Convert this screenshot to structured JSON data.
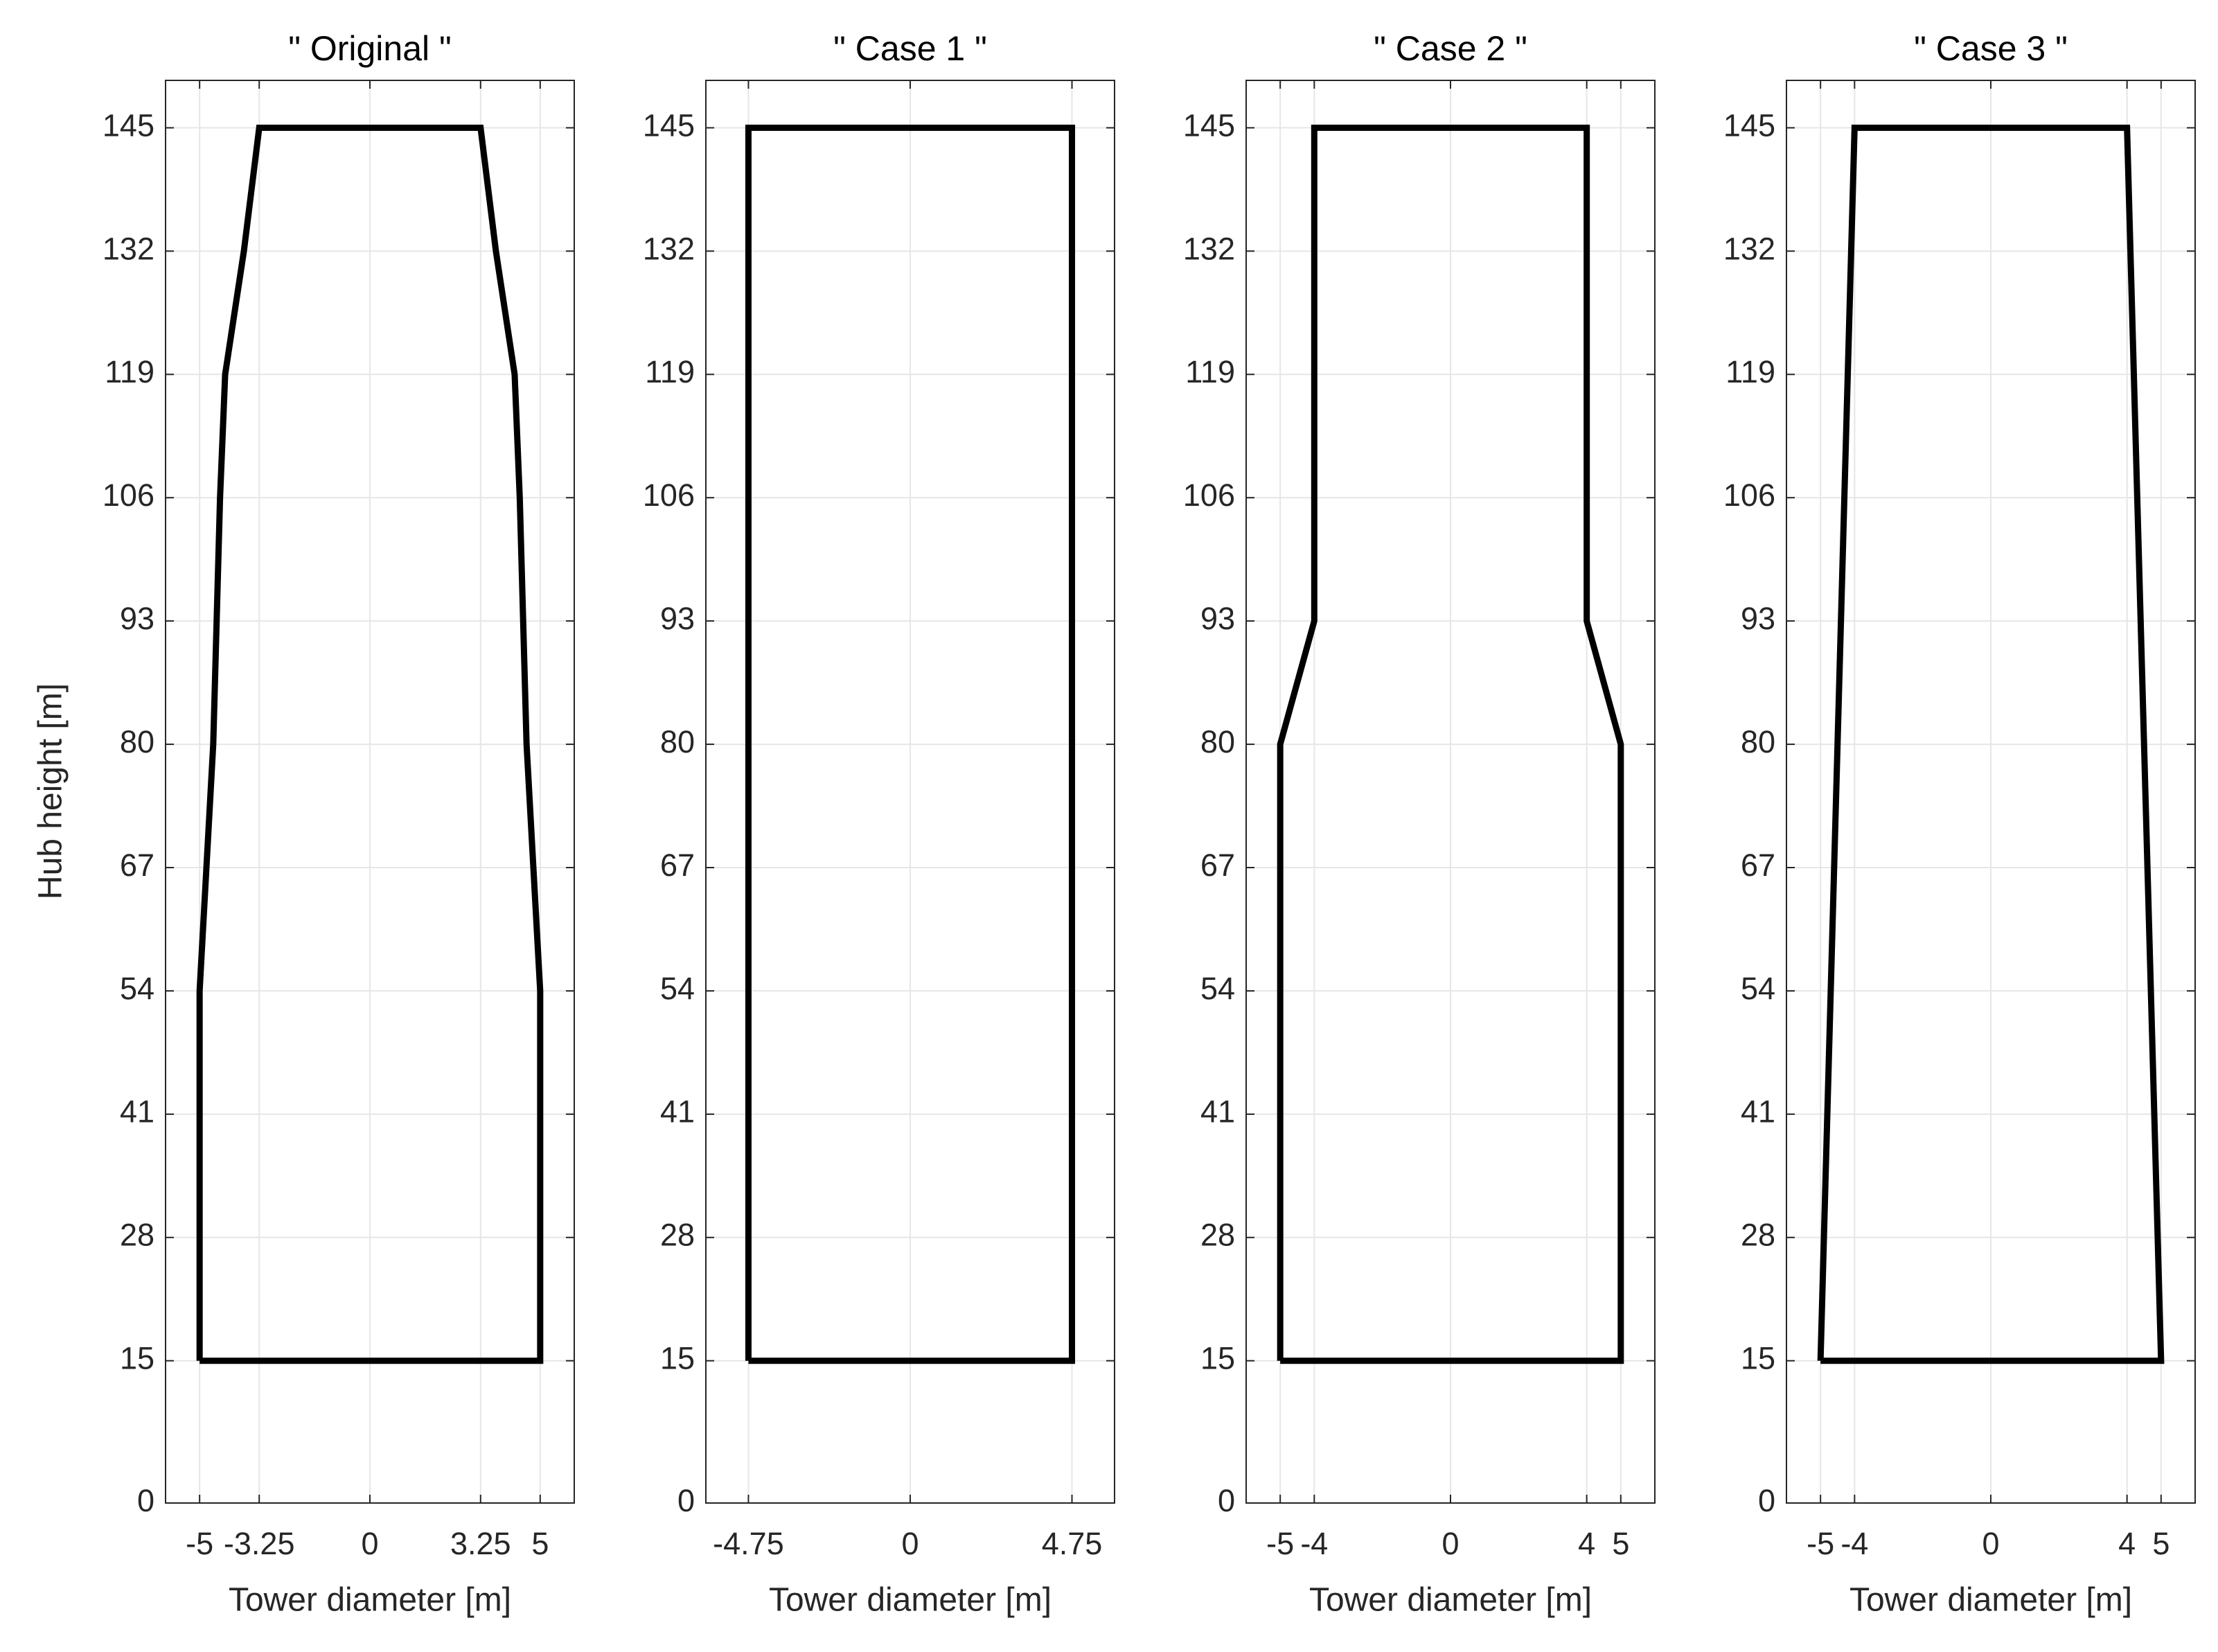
{
  "chart_data": [
    {
      "type": "line",
      "title": "\" Original \"",
      "xlabel": "Tower diameter [m]",
      "ylabel": "Hub height [m]",
      "x": [
        -5,
        5,
        5,
        4.6,
        4.4,
        4.25,
        3.7,
        3.25,
        -3.25,
        -3.7,
        -4.25,
        -4.4,
        -4.6,
        -5,
        -5
      ],
      "values": [
        15,
        15,
        54,
        80,
        106,
        119,
        132,
        145,
        145,
        132,
        119,
        106,
        80,
        54,
        15
      ],
      "color": "#000000",
      "xlim": [
        -6,
        6
      ],
      "xticks": [
        -5,
        -3.25,
        0,
        3.25,
        5
      ],
      "ylim": [
        0,
        150
      ],
      "yticks": [
        0,
        15,
        28,
        41,
        54,
        67,
        80,
        93,
        106,
        119,
        132,
        145
      ],
      "grid": true
    },
    {
      "type": "line",
      "title": "\" Case 1 \"",
      "xlabel": "Tower diameter [m]",
      "x": [
        -4.75,
        4.75,
        4.75,
        -4.75,
        -4.75
      ],
      "values": [
        15,
        15,
        145,
        145,
        15
      ],
      "color": "#000000",
      "xlim": [
        -6,
        6
      ],
      "xticks": [
        -4.75,
        0,
        4.75
      ],
      "ylim": [
        0,
        150
      ],
      "yticks": [
        0,
        15,
        28,
        41,
        54,
        67,
        80,
        93,
        106,
        119,
        132,
        145
      ],
      "grid": true
    },
    {
      "type": "line",
      "title": "\" Case 2 \"",
      "xlabel": "Tower diameter [m]",
      "x": [
        -5,
        5,
        5,
        4,
        4,
        -4,
        -4,
        -5,
        -5
      ],
      "values": [
        15,
        15,
        80,
        93,
        145,
        145,
        93,
        80,
        15
      ],
      "color": "#000000",
      "xlim": [
        -6,
        6
      ],
      "xticks": [
        -5,
        -4,
        0,
        4,
        5
      ],
      "ylim": [
        0,
        150
      ],
      "yticks": [
        0,
        15,
        28,
        41,
        54,
        67,
        80,
        93,
        106,
        119,
        132,
        145
      ],
      "grid": true
    },
    {
      "type": "line",
      "title": "\" Case 3 \"",
      "xlabel": "Tower diameter [m]",
      "x": [
        -5,
        5,
        4,
        -4,
        -5
      ],
      "values": [
        15,
        15,
        145,
        145,
        15
      ],
      "color": "#000000",
      "xlim": [
        -6,
        6
      ],
      "xticks": [
        -5,
        -4,
        0,
        4,
        5
      ],
      "ylim": [
        0,
        150
      ],
      "yticks": [
        0,
        15,
        28,
        41,
        54,
        67,
        80,
        93,
        106,
        119,
        132,
        145
      ],
      "grid": true
    }
  ]
}
